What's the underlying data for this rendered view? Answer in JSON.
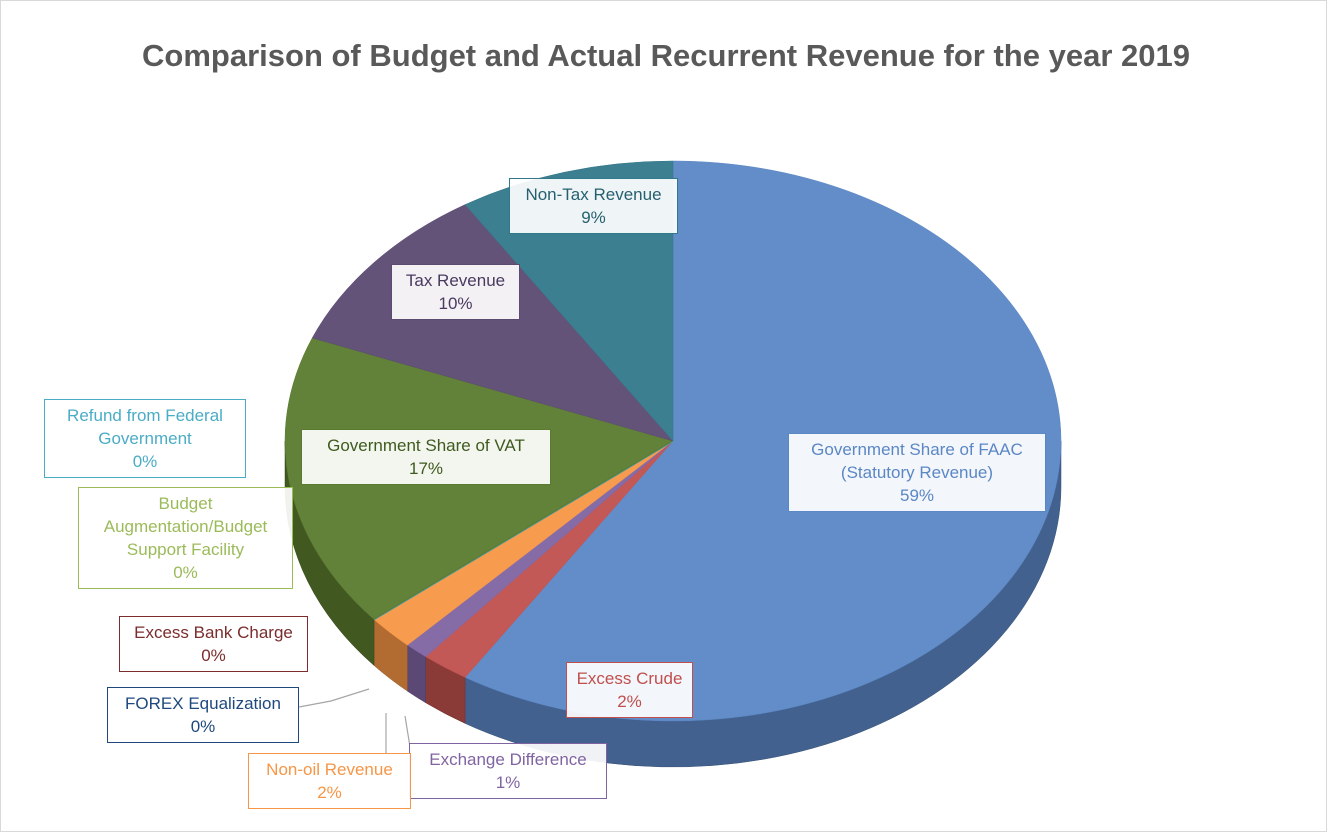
{
  "chart_data": {
    "type": "pie",
    "title": "Comparison of Budget and Actual Recurrent Revenue for the year 2019",
    "categories": [
      "Government Share of FAAC (Statutory Revenue)",
      "Excess Crude",
      "Exchange Difference",
      "Non-oil Revenue",
      "FOREX Equalization",
      "Excess Bank Charge",
      "Budget Augmentation/Budget Support Facility",
      "Refund from Federal Government",
      "Government Share of VAT",
      "Tax Revenue",
      "Non-Tax Revenue"
    ],
    "values": [
      59,
      2,
      1,
      2,
      0,
      0,
      0,
      0,
      17,
      10,
      9
    ],
    "value_labels": [
      "59%",
      "2%",
      "1%",
      "2%",
      "0%",
      "0%",
      "0%",
      "0%",
      "17%",
      "10%",
      "9%"
    ],
    "colors": [
      "#5b87c5",
      "#c0504d",
      "#8064a2",
      "#f79646",
      "#1f497d",
      "#7b2c2c",
      "#9bbb59",
      "#4bacc6",
      "#5a7a2e",
      "#5c4a72",
      "#31788a"
    ]
  }
}
